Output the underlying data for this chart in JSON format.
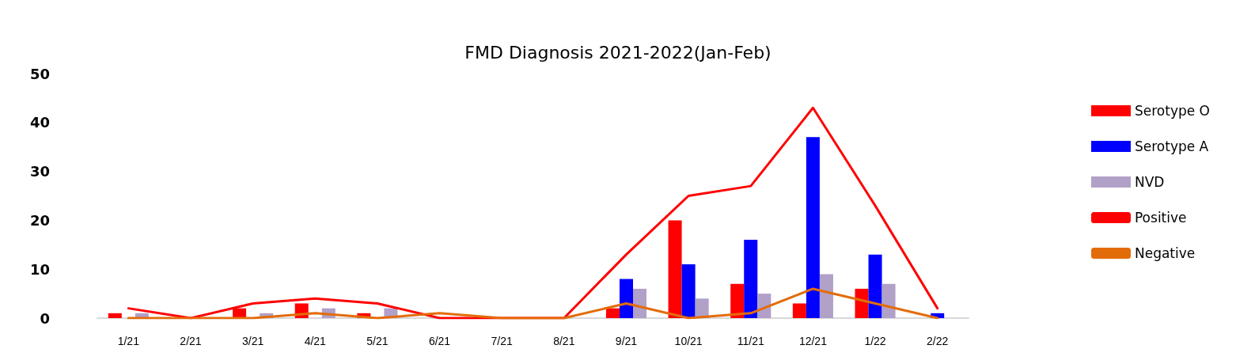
{
  "chart_data": {
    "type": "bar",
    "title": "FMD Diagnosis 2021-2022(Jan-Feb)",
    "categories": [
      "1/21",
      "2/21",
      "3/21",
      "4/21",
      "5/21",
      "6/21",
      "7/21",
      "8/21",
      "9/21",
      "10/21",
      "11/21",
      "12/21",
      "1/22",
      "2/22"
    ],
    "series": [
      {
        "name": "Serotype O",
        "color": "#ff0000",
        "values": [
          1,
          0,
          2,
          3,
          1,
          0,
          0,
          0,
          2,
          20,
          7,
          3,
          6,
          0
        ]
      },
      {
        "name": "Serotype A",
        "color": "#0000ff",
        "values": [
          0,
          0,
          0,
          0,
          0,
          0,
          0,
          0,
          8,
          11,
          16,
          37,
          13,
          1
        ]
      },
      {
        "name": "NVD",
        "color": "#b1a0c7",
        "values": [
          1,
          0,
          1,
          2,
          2,
          0,
          0,
          0,
          6,
          4,
          5,
          9,
          7,
          0
        ]
      },
      {
        "name": "Positive",
        "type": "line",
        "color": "#ff0000",
        "values": [
          2,
          0,
          3,
          4,
          3,
          0,
          0,
          0,
          13,
          25,
          27,
          43,
          23,
          2
        ]
      },
      {
        "name": "Negative",
        "type": "line",
        "color": "#e36c0a",
        "values": [
          0,
          0,
          0,
          1,
          0,
          1,
          0,
          0,
          3,
          0,
          1,
          6,
          3,
          0
        ]
      }
    ],
    "ylim": [
      0,
      50
    ],
    "yticks": [
      0,
      10,
      20,
      30,
      40,
      50
    ],
    "grid": false,
    "legend": "right",
    "marker": "none"
  }
}
